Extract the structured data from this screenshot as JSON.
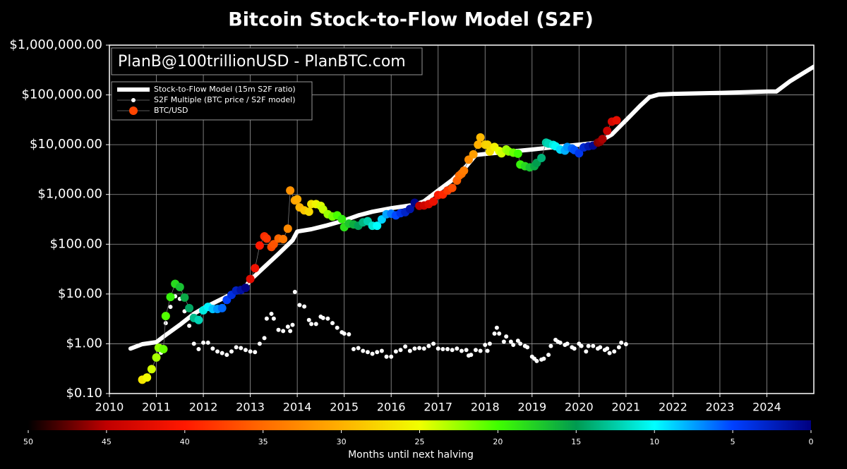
{
  "chart_data": {
    "type": "scatter",
    "title": "Bitcoin Stock-to-Flow Model (S2F)",
    "annotation": "PlanB@100trillionUSD - PlanBTC.com",
    "log_y": true,
    "grid": true,
    "legend": "upper left",
    "xlim": [
      2010,
      2025
    ],
    "xticks": [
      2010,
      2011,
      2012,
      2013,
      2014,
      2015,
      2016,
      2017,
      2018,
      2019,
      2020,
      2021,
      2022,
      2023,
      2024
    ],
    "ylim": [
      0.1,
      1000000
    ],
    "yticks": [
      {
        "value": 0.1,
        "label": "$0.10"
      },
      {
        "value": 1,
        "label": "$1.00"
      },
      {
        "value": 10,
        "label": "$10.00"
      },
      {
        "value": 100,
        "label": "$100.00"
      },
      {
        "value": 1000,
        "label": "$1,000.00"
      },
      {
        "value": 10000,
        "label": "$10,000.00"
      },
      {
        "value": 100000,
        "label": "$100,000.00"
      },
      {
        "value": 1000000,
        "label": "$1,000,000.00"
      }
    ],
    "series": [
      {
        "name": "Stock-to-Flow Model (15m S2F ratio)",
        "style": "line",
        "color": "#ffffff",
        "x": [
          2010.45,
          2010.7,
          2011.0,
          2011.2,
          2011.5,
          2011.8,
          2012.0,
          2012.3,
          2012.6,
          2012.9,
          2013.0,
          2013.3,
          2013.6,
          2013.9,
          2014.0,
          2014.3,
          2014.6,
          2015.0,
          2015.3,
          2015.6,
          2016.0,
          2016.5,
          2016.7,
          2017.0,
          2017.3,
          2017.6,
          2017.8,
          2018.0,
          2018.5,
          2019.0,
          2019.5,
          2020.0,
          2020.4,
          2020.7,
          2021.0,
          2021.3,
          2021.5,
          2021.7,
          2022.0,
          2023.0,
          2024.0,
          2024.2,
          2024.5,
          2025.0
        ],
        "values": [
          0.8,
          0.98,
          1.08,
          1.5,
          2.4,
          4,
          5.2,
          7.2,
          10,
          14,
          19,
          35,
          64,
          120,
          180,
          200,
          235,
          300,
          380,
          450,
          530,
          620,
          730,
          1200,
          1950,
          3700,
          6200,
          6500,
          7200,
          8000,
          9000,
          10000,
          11000,
          16000,
          31000,
          60000,
          90000,
          102000,
          105000,
          110000,
          117000,
          117000,
          190000,
          370000
        ]
      },
      {
        "name": "S2F Multiple (BTC price / S2F model)",
        "style": "dots",
        "color": "#ffffff",
        "x": [
          2011.1,
          2011.2,
          2011.3,
          2011.4,
          2011.5,
          2011.6,
          2011.7,
          2011.8,
          2011.9,
          2012.0,
          2012.1,
          2012.2,
          2012.3,
          2012.4,
          2012.5,
          2012.6,
          2012.7,
          2012.8,
          2012.9,
          2013.0,
          2013.1,
          2013.2,
          2013.3,
          2013.35,
          2013.45,
          2013.5,
          2013.6,
          2013.7,
          2013.8,
          2013.85,
          2013.9,
          2013.95,
          2014.05,
          2014.15,
          2014.25,
          2014.3,
          2014.4,
          2014.5,
          2014.55,
          2014.65,
          2014.75,
          2014.85,
          2014.95,
          2015.0,
          2015.1,
          2015.2,
          2015.3,
          2015.4,
          2015.5,
          2015.6,
          2015.7,
          2015.8,
          2015.9,
          2016.0,
          2016.1,
          2016.2,
          2016.3,
          2016.4,
          2016.5,
          2016.6,
          2016.7,
          2016.8,
          2016.9,
          2017.0,
          2017.1,
          2017.2,
          2017.3,
          2017.4,
          2017.5,
          2017.6,
          2017.65,
          2017.7,
          2017.8,
          2017.9,
          2018.0,
          2018.05,
          2018.1,
          2018.2,
          2018.25,
          2018.3,
          2018.4,
          2018.45,
          2018.55,
          2018.6,
          2018.7,
          2018.75,
          2018.85,
          2018.9,
          2019.0,
          2019.05,
          2019.1,
          2019.2,
          2019.25,
          2019.35,
          2019.4,
          2019.5,
          2019.55,
          2019.6,
          2019.7,
          2019.75,
          2019.85,
          2019.9,
          2020.0,
          2020.05,
          2020.15,
          2020.2,
          2020.3,
          2020.4,
          2020.45,
          2020.55,
          2020.6,
          2020.65,
          2020.75,
          2020.85,
          2020.9,
          2021.0
        ],
        "values": [
          0.66,
          2.6,
          5.5,
          9,
          8,
          4.5,
          2.3,
          1.0,
          0.78,
          1.05,
          1.05,
          0.8,
          0.7,
          0.65,
          0.6,
          0.7,
          0.85,
          0.82,
          0.75,
          0.7,
          0.68,
          1.0,
          1.3,
          3.2,
          4,
          3.2,
          1.9,
          1.8,
          2.2,
          1.8,
          2.4,
          11,
          6,
          5.6,
          3,
          2.5,
          2.5,
          3.5,
          3.3,
          3.2,
          2.6,
          2.1,
          1.7,
          1.6,
          1.55,
          0.78,
          0.82,
          0.72,
          0.68,
          0.63,
          0.68,
          0.72,
          0.55,
          0.55,
          0.7,
          0.75,
          0.88,
          0.72,
          0.8,
          0.82,
          0.8,
          0.9,
          1.0,
          0.8,
          0.78,
          0.78,
          0.75,
          0.8,
          0.72,
          0.75,
          0.58,
          0.6,
          0.75,
          0.72,
          0.95,
          0.72,
          1.0,
          1.6,
          2.1,
          1.6,
          1.1,
          1.4,
          1.1,
          0.95,
          1.15,
          1.0,
          0.9,
          0.85,
          0.55,
          0.5,
          0.45,
          0.48,
          0.5,
          0.6,
          0.9,
          1.2,
          1.1,
          1.05,
          0.95,
          1.0,
          0.85,
          0.8,
          1.0,
          0.9,
          0.7,
          0.9,
          0.9,
          0.8,
          0.85,
          0.75,
          0.8,
          0.65,
          0.7,
          0.85,
          1.05,
          0.98
        ]
      },
      {
        "name": "BTC/USD",
        "style": "colored-dots",
        "color": "#ff4500",
        "x": [
          2010.7,
          2010.8,
          2010.9,
          2011.0,
          2011.05,
          2011.15,
          2011.2,
          2011.3,
          2011.4,
          2011.5,
          2011.6,
          2011.7,
          2011.8,
          2011.9,
          2012.0,
          2012.1,
          2012.2,
          2012.3,
          2012.4,
          2012.5,
          2012.6,
          2012.7,
          2012.8,
          2012.9,
          2013.0,
          2013.1,
          2013.2,
          2013.3,
          2013.35,
          2013.45,
          2013.5,
          2013.6,
          2013.7,
          2013.8,
          2013.85,
          2013.95,
          2014.0,
          2014.05,
          2014.15,
          2014.25,
          2014.3,
          2014.4,
          2014.5,
          2014.55,
          2014.65,
          2014.75,
          2014.85,
          2014.95,
          2015.0,
          2015.1,
          2015.2,
          2015.3,
          2015.4,
          2015.5,
          2015.6,
          2015.7,
          2015.8,
          2015.9,
          2016.0,
          2016.1,
          2016.2,
          2016.3,
          2016.4,
          2016.5,
          2016.6,
          2016.7,
          2016.8,
          2016.9,
          2017.0,
          2017.1,
          2017.2,
          2017.3,
          2017.4,
          2017.45,
          2017.5,
          2017.55,
          2017.65,
          2017.75,
          2017.85,
          2017.9,
          2018.0,
          2018.05,
          2018.1,
          2018.2,
          2018.3,
          2018.35,
          2018.45,
          2018.5,
          2018.6,
          2018.7,
          2018.75,
          2018.85,
          2018.95,
          2019.05,
          2019.1,
          2019.2,
          2019.3,
          2019.35,
          2019.45,
          2019.5,
          2019.6,
          2019.7,
          2019.75,
          2019.85,
          2019.9,
          2020.0,
          2020.1,
          2020.2,
          2020.3,
          2020.4,
          2020.45,
          2020.5,
          2020.6,
          2020.7,
          2020.8
        ],
        "values": [
          0.19,
          0.21,
          0.31,
          0.53,
          0.83,
          0.78,
          3.6,
          8.7,
          16,
          13.8,
          8.5,
          5.2,
          3.3,
          3,
          4.7,
          5.5,
          5,
          5,
          5.2,
          7.6,
          9.6,
          11.7,
          12,
          13.3,
          20,
          33,
          94,
          144,
          130,
          88,
          100,
          130,
          127,
          205,
          1200,
          760,
          800,
          550,
          480,
          450,
          640,
          640,
          590,
          500,
          400,
          360,
          380,
          320,
          220,
          260,
          250,
          235,
          275,
          290,
          235,
          235,
          315,
          400,
          410,
          380,
          420,
          440,
          510,
          680,
          590,
          600,
          640,
          720,
          970,
          1000,
          1200,
          1350,
          1900,
          2400,
          2600,
          3000,
          5000,
          6400,
          10000,
          14000,
          10000,
          10000,
          7300,
          9000,
          7500,
          6700,
          8000,
          7300,
          6900,
          6600,
          4000,
          3700,
          3500,
          3700,
          4300,
          5400,
          11000,
          10500,
          9900,
          9300,
          8000,
          7600,
          9000,
          8400,
          7800,
          6700,
          8800,
          9300,
          9600,
          11000,
          11500,
          13000,
          19000,
          29000,
          31000
        ],
        "color_values": [
          26.5,
          25.3,
          24.1,
          22.9,
          22.3,
          21.1,
          20.5,
          19.3,
          18.1,
          16.9,
          15.7,
          14.5,
          13.3,
          12.1,
          10.9,
          9.7,
          8.5,
          7.3,
          6.1,
          4.9,
          3.7,
          2.5,
          1.3,
          0.1,
          42.4,
          41.2,
          40,
          38.8,
          38.2,
          37,
          36.4,
          35.2,
          34,
          32.8,
          32.2,
          31,
          30.4,
          29.8,
          28.6,
          27.4,
          26.8,
          25.6,
          24.4,
          23.8,
          22.6,
          21.4,
          20.2,
          19,
          18.4,
          17.2,
          16,
          14.8,
          13.6,
          12.4,
          11.2,
          10,
          8.8,
          7.6,
          6.4,
          5.2,
          4,
          2.8,
          1.6,
          0.4,
          45.1,
          43.9,
          42.7,
          41.5,
          40.3,
          39.1,
          37.9,
          36.7,
          35.5,
          34.9,
          34.3,
          33.7,
          32.5,
          31.3,
          30.1,
          29.5,
          28.3,
          27.7,
          27.1,
          25.9,
          24.7,
          24.1,
          22.9,
          22.3,
          21.1,
          19.9,
          19.3,
          18.1,
          16.9,
          15.7,
          15.1,
          13.9,
          12.7,
          12.1,
          10.9,
          10.3,
          9.1,
          7.9,
          7.3,
          6.1,
          5.5,
          4.3,
          3.1,
          1.9,
          0.7,
          46.8,
          46.2,
          45.6,
          44.4,
          43.2,
          42
        ]
      }
    ],
    "colorbar": {
      "label": "Months until next halving",
      "lim": [
        50,
        0
      ],
      "ticks": [
        50,
        45,
        40,
        35,
        30,
        25,
        20,
        15,
        10,
        5,
        0
      ],
      "colormap": [
        "#000000",
        "#c00000",
        "#ff1800",
        "#ff6a00",
        "#ffb000",
        "#f0ff00",
        "#40ff00",
        "#009a50",
        "#00ffff",
        "#0040ff",
        "#000080"
      ]
    }
  }
}
